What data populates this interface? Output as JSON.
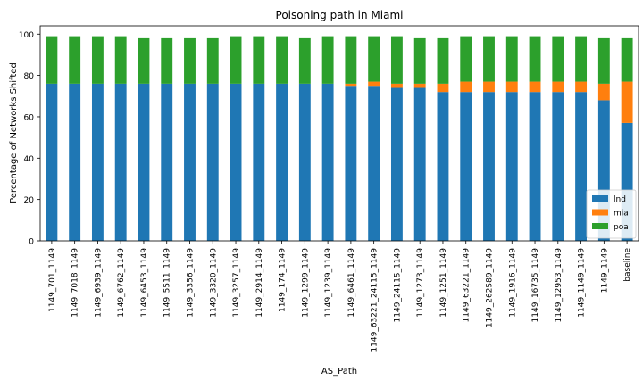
{
  "chart_data": {
    "type": "bar",
    "stacked": true,
    "title": "Poisoning path in Miami",
    "xlabel": "AS_Path",
    "ylabel": "Percentage of Networks Shifted",
    "ylim": [
      0,
      104
    ],
    "yticks": [
      0,
      20,
      40,
      60,
      80,
      100
    ],
    "grid": false,
    "legend_position": "lower-right",
    "categories": [
      "1149_701_1149",
      "1149_7018_1149",
      "1149_6939_1149",
      "1149_6762_1149",
      "1149_6453_1149",
      "1149_5511_1149",
      "1149_3356_1149",
      "1149_3320_1149",
      "1149_3257_1149",
      "1149_2914_1149",
      "1149_174_1149",
      "1149_1299_1149",
      "1149_1239_1149",
      "1149_6461_1149",
      "1149_63221_24115_1149",
      "1149_24115_1149",
      "1149_1273_1149",
      "1149_1251_1149",
      "1149_63221_1149",
      "1149_262589_1149",
      "1149_1916_1149",
      "1149_16735_1149",
      "1149_12953_1149",
      "1149_1149_1149",
      "1149_1149",
      "baseline"
    ],
    "series": [
      {
        "name": "lnd",
        "color": "#1f77b4",
        "values": [
          76,
          76,
          76,
          76,
          76,
          76,
          76,
          76,
          76,
          76,
          76,
          76,
          76,
          75,
          75,
          74,
          74,
          72,
          72,
          72,
          72,
          72,
          72,
          72,
          68,
          57
        ]
      },
      {
        "name": "mia",
        "color": "#ff7f0e",
        "values": [
          0,
          0,
          0,
          0,
          0,
          0,
          0,
          0,
          0,
          0,
          0,
          0,
          0,
          1,
          2,
          2,
          2,
          4,
          5,
          5,
          5,
          5,
          5,
          5,
          8,
          20
        ]
      },
      {
        "name": "poa",
        "color": "#2ca02c",
        "values": [
          23,
          23,
          23,
          23,
          22,
          22,
          22,
          22,
          23,
          23,
          23,
          22,
          23,
          23,
          22,
          23,
          22,
          22,
          22,
          22,
          22,
          22,
          22,
          22,
          22,
          21
        ]
      }
    ]
  }
}
